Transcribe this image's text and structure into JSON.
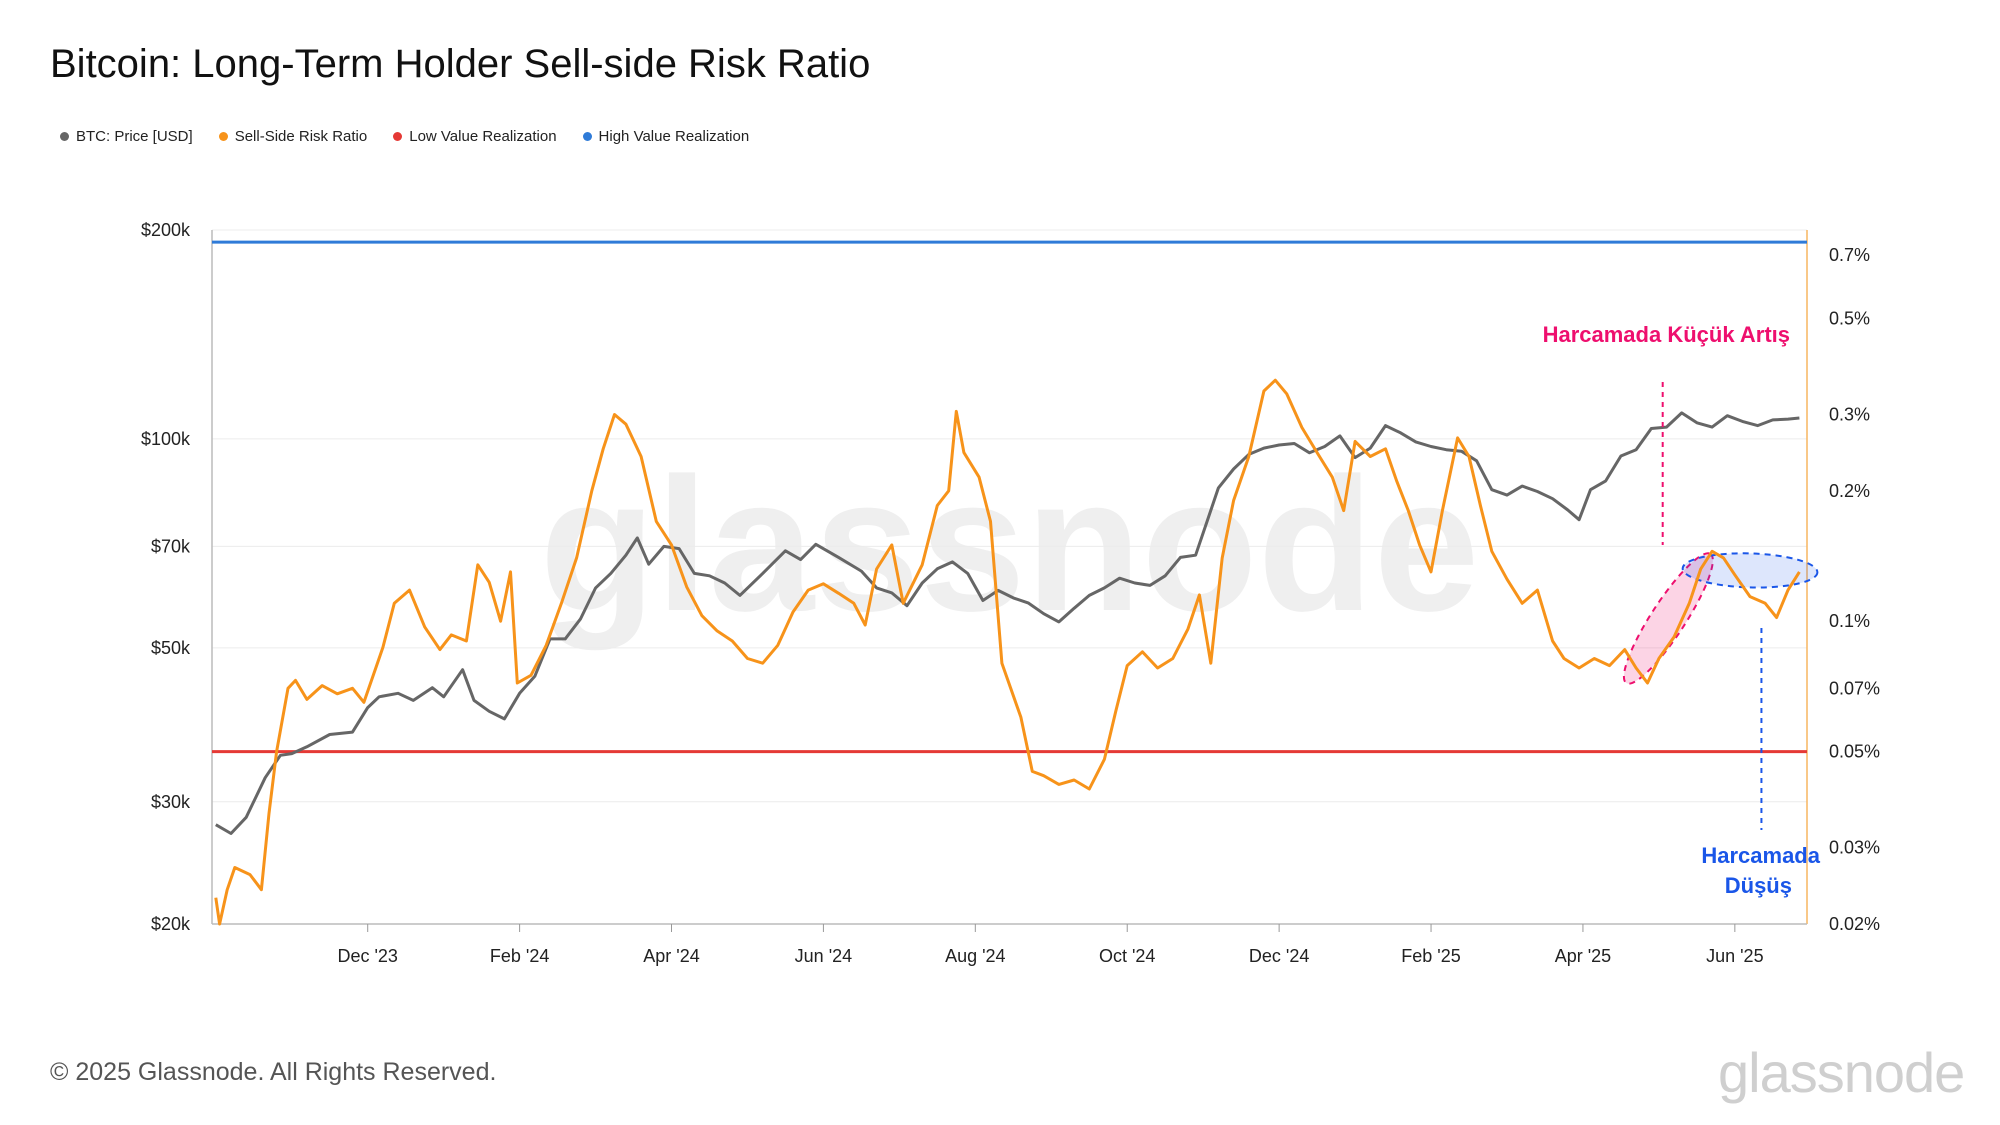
{
  "title": "Bitcoin: Long-Term Holder Sell-side Risk Ratio",
  "footer": {
    "copyright": "© 2025 Glassnode. All Rights Reserved.",
    "logo": "glassnode"
  },
  "watermark": "glassnode",
  "colors": {
    "price": "#666666",
    "ratio": "#f7931a",
    "low": "#e53935",
    "high": "#2f7bd8",
    "annotation_up": "#ee0f6e",
    "annotation_down": "#1a56e8"
  },
  "legend": [
    {
      "label": "BTC: Price [USD]",
      "color": "#666666"
    },
    {
      "label": "Sell-Side Risk Ratio",
      "color": "#f7931a"
    },
    {
      "label": "Low Value Realization",
      "color": "#e53935"
    },
    {
      "label": "High Value Realization",
      "color": "#2f7bd8"
    }
  ],
  "chart_data": {
    "type": "line",
    "title": "Bitcoin: Long-Term Holder Sell-side Risk Ratio",
    "left_axis": {
      "scale": "log",
      "range": [
        20000,
        200000
      ],
      "ticks": [
        20000,
        30000,
        50000,
        70000,
        100000,
        200000
      ],
      "tick_labels": [
        "$20k",
        "$30k",
        "$50k",
        "$70k",
        "$100k",
        "$200k"
      ]
    },
    "right_axis": {
      "scale": "log",
      "range": [
        0.02,
        0.8
      ],
      "ticks": [
        0.02,
        0.03,
        0.05,
        0.07,
        0.1,
        0.2,
        0.3,
        0.5,
        0.7
      ],
      "tick_labels": [
        "0.02%",
        "0.03%",
        "0.05%",
        "0.07%",
        "0.1%",
        "0.2%",
        "0.3%",
        "0.5%",
        "0.7%"
      ]
    },
    "x_range_months": [
      -1.05,
      19.95
    ],
    "x_ticks": [
      {
        "month": 1,
        "label": "Dec '23"
      },
      {
        "month": 3,
        "label": "Feb '24"
      },
      {
        "month": 5,
        "label": "Apr '24"
      },
      {
        "month": 7,
        "label": "Jun '24"
      },
      {
        "month": 9,
        "label": "Aug '24"
      },
      {
        "month": 11,
        "label": "Oct '24"
      },
      {
        "month": 13,
        "label": "Dec '24"
      },
      {
        "month": 15,
        "label": "Feb '25"
      },
      {
        "month": 17,
        "label": "Apr '25"
      },
      {
        "month": 19,
        "label": "Jun '25"
      }
    ],
    "horizontal_lines": [
      {
        "name": "High Value Realization",
        "value": 0.75,
        "axis": "right"
      },
      {
        "name": "Low Value Realization",
        "value": 0.05,
        "axis": "right"
      }
    ],
    "series": [
      {
        "name": "BTC: Price [USD]",
        "axis": "left",
        "points": [
          [
            -1.0,
            27800
          ],
          [
            -0.8,
            27000
          ],
          [
            -0.6,
            28500
          ],
          [
            -0.35,
            32500
          ],
          [
            -0.15,
            35000
          ],
          [
            0.0,
            35200
          ],
          [
            0.2,
            36000
          ],
          [
            0.5,
            37500
          ],
          [
            0.8,
            37800
          ],
          [
            1.0,
            41000
          ],
          [
            1.15,
            42500
          ],
          [
            1.4,
            43000
          ],
          [
            1.6,
            42000
          ],
          [
            1.85,
            43800
          ],
          [
            2.0,
            42500
          ],
          [
            2.25,
            46500
          ],
          [
            2.4,
            42000
          ],
          [
            2.6,
            40500
          ],
          [
            2.8,
            39500
          ],
          [
            3.0,
            43000
          ],
          [
            3.2,
            45500
          ],
          [
            3.4,
            51500
          ],
          [
            3.6,
            51500
          ],
          [
            3.8,
            55000
          ],
          [
            4.0,
            61000
          ],
          [
            4.2,
            64000
          ],
          [
            4.4,
            68000
          ],
          [
            4.55,
            72000
          ],
          [
            4.7,
            66000
          ],
          [
            4.9,
            70000
          ],
          [
            5.1,
            69500
          ],
          [
            5.3,
            64000
          ],
          [
            5.5,
            63500
          ],
          [
            5.7,
            62000
          ],
          [
            5.9,
            59500
          ],
          [
            6.2,
            64000
          ],
          [
            6.5,
            69000
          ],
          [
            6.7,
            67000
          ],
          [
            6.9,
            70500
          ],
          [
            7.2,
            67500
          ],
          [
            7.5,
            64500
          ],
          [
            7.7,
            61000
          ],
          [
            7.9,
            60000
          ],
          [
            8.1,
            57500
          ],
          [
            8.3,
            62000
          ],
          [
            8.5,
            65000
          ],
          [
            8.7,
            66500
          ],
          [
            8.9,
            64000
          ],
          [
            9.1,
            58500
          ],
          [
            9.3,
            60500
          ],
          [
            9.5,
            59000
          ],
          [
            9.7,
            58000
          ],
          [
            9.9,
            56000
          ],
          [
            10.1,
            54500
          ],
          [
            10.3,
            57000
          ],
          [
            10.5,
            59500
          ],
          [
            10.7,
            61000
          ],
          [
            10.9,
            63000
          ],
          [
            11.1,
            62000
          ],
          [
            11.3,
            61500
          ],
          [
            11.5,
            63500
          ],
          [
            11.7,
            67500
          ],
          [
            11.9,
            68000
          ],
          [
            12.05,
            76000
          ],
          [
            12.2,
            85000
          ],
          [
            12.4,
            90500
          ],
          [
            12.6,
            95000
          ],
          [
            12.8,
            97000
          ],
          [
            13.0,
            98000
          ],
          [
            13.2,
            98500
          ],
          [
            13.4,
            95500
          ],
          [
            13.6,
            97500
          ],
          [
            13.8,
            101000
          ],
          [
            14.0,
            94000
          ],
          [
            14.2,
            97000
          ],
          [
            14.4,
            104500
          ],
          [
            14.6,
            102000
          ],
          [
            14.8,
            99000
          ],
          [
            15.0,
            97500
          ],
          [
            15.2,
            96500
          ],
          [
            15.4,
            96000
          ],
          [
            15.6,
            93000
          ],
          [
            15.8,
            84500
          ],
          [
            16.0,
            83000
          ],
          [
            16.2,
            85500
          ],
          [
            16.4,
            84000
          ],
          [
            16.6,
            82000
          ],
          [
            16.8,
            79000
          ],
          [
            16.95,
            76500
          ],
          [
            17.1,
            84500
          ],
          [
            17.3,
            87000
          ],
          [
            17.5,
            94500
          ],
          [
            17.7,
            96500
          ],
          [
            17.9,
            103500
          ],
          [
            18.1,
            104000
          ],
          [
            18.3,
            109000
          ],
          [
            18.5,
            105500
          ],
          [
            18.7,
            104000
          ],
          [
            18.9,
            108000
          ],
          [
            19.1,
            106000
          ],
          [
            19.3,
            104500
          ],
          [
            19.5,
            106500
          ],
          [
            19.7,
            106800
          ],
          [
            19.85,
            107200
          ]
        ]
      },
      {
        "name": "Sell-Side Risk Ratio",
        "axis": "right",
        "points": [
          [
            -1.0,
            0.023
          ],
          [
            -0.95,
            0.02
          ],
          [
            -0.85,
            0.024
          ],
          [
            -0.75,
            0.027
          ],
          [
            -0.55,
            0.026
          ],
          [
            -0.4,
            0.024
          ],
          [
            -0.3,
            0.036
          ],
          [
            -0.2,
            0.05
          ],
          [
            -0.05,
            0.07
          ],
          [
            0.05,
            0.073
          ],
          [
            0.2,
            0.066
          ],
          [
            0.4,
            0.071
          ],
          [
            0.6,
            0.068
          ],
          [
            0.8,
            0.07
          ],
          [
            0.95,
            0.065
          ],
          [
            1.05,
            0.073
          ],
          [
            1.2,
            0.087
          ],
          [
            1.35,
            0.11
          ],
          [
            1.55,
            0.118
          ],
          [
            1.75,
            0.097
          ],
          [
            1.95,
            0.086
          ],
          [
            2.1,
            0.093
          ],
          [
            2.3,
            0.09
          ],
          [
            2.45,
            0.135
          ],
          [
            2.6,
            0.123
          ],
          [
            2.75,
            0.1
          ],
          [
            2.88,
            0.13
          ],
          [
            2.97,
            0.072
          ],
          [
            3.15,
            0.075
          ],
          [
            3.35,
            0.088
          ],
          [
            3.55,
            0.11
          ],
          [
            3.75,
            0.14
          ],
          [
            3.95,
            0.2
          ],
          [
            4.1,
            0.25
          ],
          [
            4.25,
            0.3
          ],
          [
            4.4,
            0.285
          ],
          [
            4.6,
            0.24
          ],
          [
            4.8,
            0.17
          ],
          [
            5.0,
            0.15
          ],
          [
            5.2,
            0.12
          ],
          [
            5.4,
            0.103
          ],
          [
            5.6,
            0.095
          ],
          [
            5.8,
            0.09
          ],
          [
            6.0,
            0.082
          ],
          [
            6.2,
            0.08
          ],
          [
            6.4,
            0.088
          ],
          [
            6.6,
            0.105
          ],
          [
            6.8,
            0.118
          ],
          [
            7.0,
            0.122
          ],
          [
            7.2,
            0.116
          ],
          [
            7.4,
            0.11
          ],
          [
            7.55,
            0.098
          ],
          [
            7.7,
            0.132
          ],
          [
            7.9,
            0.15
          ],
          [
            8.05,
            0.11
          ],
          [
            8.3,
            0.135
          ],
          [
            8.5,
            0.185
          ],
          [
            8.65,
            0.2
          ],
          [
            8.75,
            0.305
          ],
          [
            8.85,
            0.245
          ],
          [
            9.05,
            0.215
          ],
          [
            9.2,
            0.17
          ],
          [
            9.35,
            0.08
          ],
          [
            9.6,
            0.06
          ],
          [
            9.75,
            0.045
          ],
          [
            9.9,
            0.044
          ],
          [
            10.1,
            0.042
          ],
          [
            10.3,
            0.043
          ],
          [
            10.5,
            0.041
          ],
          [
            10.7,
            0.048
          ],
          [
            10.85,
            0.062
          ],
          [
            11.0,
            0.079
          ],
          [
            11.2,
            0.085
          ],
          [
            11.4,
            0.078
          ],
          [
            11.6,
            0.082
          ],
          [
            11.8,
            0.096
          ],
          [
            11.95,
            0.115
          ],
          [
            12.1,
            0.08
          ],
          [
            12.25,
            0.14
          ],
          [
            12.4,
            0.19
          ],
          [
            12.6,
            0.24
          ],
          [
            12.8,
            0.34
          ],
          [
            12.95,
            0.36
          ],
          [
            13.1,
            0.335
          ],
          [
            13.3,
            0.28
          ],
          [
            13.5,
            0.245
          ],
          [
            13.7,
            0.215
          ],
          [
            13.85,
            0.18
          ],
          [
            14.0,
            0.26
          ],
          [
            14.2,
            0.24
          ],
          [
            14.4,
            0.25
          ],
          [
            14.55,
            0.21
          ],
          [
            14.7,
            0.18
          ],
          [
            14.85,
            0.15
          ],
          [
            15.0,
            0.13
          ],
          [
            15.15,
            0.18
          ],
          [
            15.35,
            0.265
          ],
          [
            15.5,
            0.24
          ],
          [
            15.65,
            0.185
          ],
          [
            15.8,
            0.145
          ],
          [
            16.0,
            0.125
          ],
          [
            16.2,
            0.11
          ],
          [
            16.4,
            0.118
          ],
          [
            16.6,
            0.09
          ],
          [
            16.75,
            0.082
          ],
          [
            16.95,
            0.078
          ],
          [
            17.15,
            0.082
          ],
          [
            17.35,
            0.079
          ],
          [
            17.55,
            0.086
          ],
          [
            17.7,
            0.078
          ],
          [
            17.85,
            0.072
          ],
          [
            18.0,
            0.082
          ],
          [
            18.2,
            0.092
          ],
          [
            18.4,
            0.11
          ],
          [
            18.55,
            0.132
          ],
          [
            18.7,
            0.145
          ],
          [
            18.85,
            0.14
          ],
          [
            19.0,
            0.128
          ],
          [
            19.2,
            0.114
          ],
          [
            19.4,
            0.11
          ],
          [
            19.55,
            0.102
          ],
          [
            19.7,
            0.118
          ],
          [
            19.85,
            0.13
          ]
        ]
      }
    ],
    "annotations": [
      {
        "text": "Harcamada Küçük Artış",
        "color": "#ee0f6e",
        "line_month": 18.05,
        "highlight_range": [
          17.65,
          18.55
        ]
      },
      {
        "text": [
          "Harcamada",
          "Düşüş"
        ],
        "color": "#1a56e8",
        "line_month": 19.35,
        "highlight_range": [
          18.6,
          19.85
        ]
      }
    ]
  }
}
